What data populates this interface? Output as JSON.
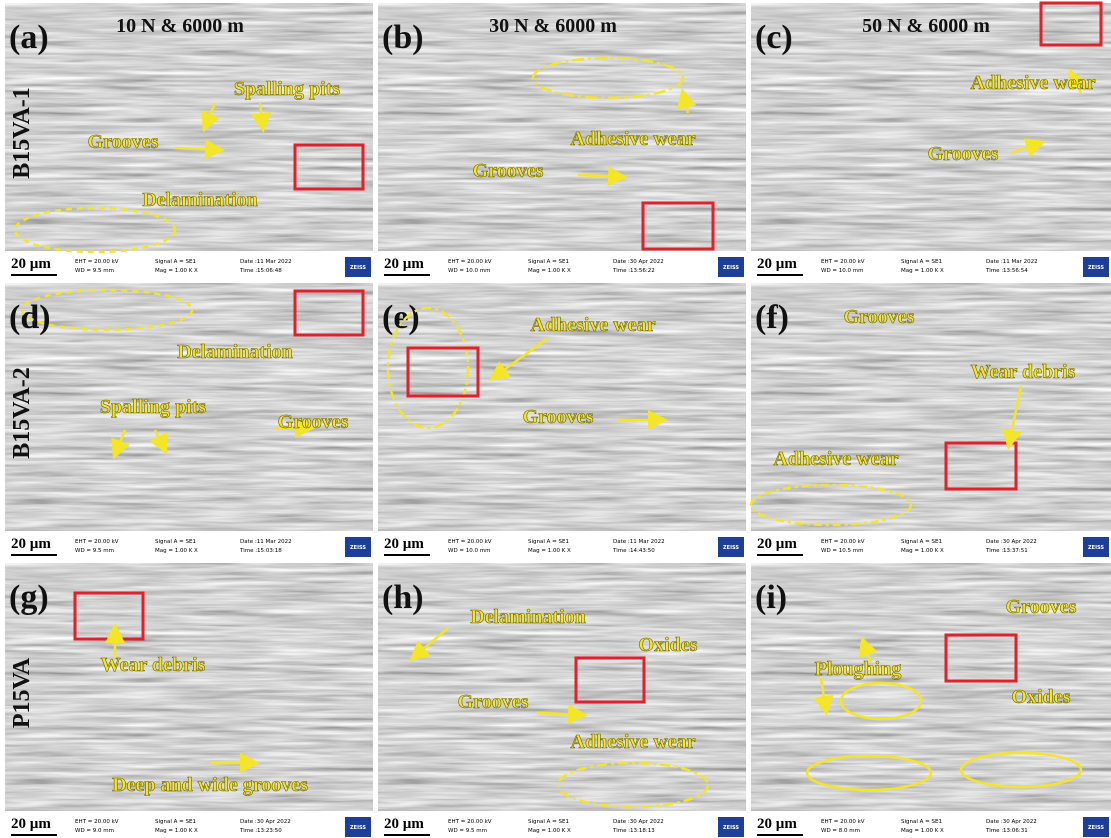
{
  "panels": [
    {
      "label": "(a)",
      "condition": "10 N & 6000 m",
      "row_label": "B15VA-1",
      "annotations": [
        "Spalling pits",
        "Grooves",
        "Delamination"
      ],
      "scale": "20 µm",
      "footer": {
        "eht": "EHT = 20.00 kV",
        "wd": "WD = 9.5 mm",
        "signal": "Signal A = SE1",
        "mag": "Mag = 1.00 K X",
        "date": "Date :11 Mar 2022",
        "time": "Time :15:06:48",
        "brand": "ZEISS"
      }
    },
    {
      "label": "(b)",
      "condition": "30 N & 6000 m",
      "annotations": [
        "Adhesive wear",
        "Grooves"
      ],
      "scale": "20 µm",
      "footer": {
        "eht": "EHT = 20.00 kV",
        "wd": "WD = 10.0 mm",
        "signal": "Signal A = SE1",
        "mag": "Mag = 1.00 K X",
        "date": "Date :30 Apr 2022",
        "time": "Time :13:56:22",
        "brand": "ZEISS"
      }
    },
    {
      "label": "(c)",
      "condition": "50 N & 6000 m",
      "annotations": [
        "Adhesive wear",
        "Grooves"
      ],
      "scale": "20 µm",
      "footer": {
        "eht": "EHT = 20.00 kV",
        "wd": "WD = 10.0 mm",
        "signal": "Signal A = SE1",
        "mag": "Mag = 1.00 K X",
        "date": "Date :11 Mar 2022",
        "time": "Time :13:56:54",
        "brand": "ZEISS"
      }
    },
    {
      "label": "(d)",
      "row_label": "B15VA-2",
      "annotations": [
        "Delamination",
        "Spalling pits",
        "Grooves"
      ],
      "scale": "20 µm",
      "footer": {
        "eht": "EHT = 20.00 kV",
        "wd": "WD = 9.5 mm",
        "signal": "Signal A = SE1",
        "mag": "Mag = 1.00 K X",
        "date": "Date :11 Mar 2022",
        "time": "Time :15:03:18",
        "brand": "ZEISS"
      }
    },
    {
      "label": "(e)",
      "annotations": [
        "Adhesive wear",
        "Grooves"
      ],
      "scale": "20 µm",
      "footer": {
        "eht": "EHT = 20.00 kV",
        "wd": "WD = 10.0 mm",
        "signal": "Signal A = SE1",
        "mag": "Mag = 1.00 K X",
        "date": "Date :11 Mar 2022",
        "time": "Time :14:43:50",
        "brand": "ZEISS"
      }
    },
    {
      "label": "(f)",
      "annotations": [
        "Grooves",
        "Wear debris",
        "Adhesive wear"
      ],
      "scale": "20 µm",
      "footer": {
        "eht": "EHT = 20.00 kV",
        "wd": "WD = 10.5 mm",
        "signal": "Signal A = SE1",
        "mag": "Mag = 1.00 K X",
        "date": "Date :30 Apr 2022",
        "time": "Time :13:37:51",
        "brand": "ZEISS"
      }
    },
    {
      "label": "(g)",
      "row_label": "P15VA",
      "annotations": [
        "Wear debris",
        "Deep and wide grooves"
      ],
      "scale": "20 µm",
      "footer": {
        "eht": "EHT = 20.00 kV",
        "wd": "WD = 9.0 mm",
        "signal": "Signal A = SE1",
        "mag": "Mag = 1.00 K X",
        "date": "Date :30 Apr 2022",
        "time": "Time :13:23:50",
        "brand": "ZEISS"
      }
    },
    {
      "label": "(h)",
      "annotations": [
        "Delamination",
        "Oxides",
        "Grooves",
        "Adhesive wear"
      ],
      "scale": "20 µm",
      "footer": {
        "eht": "EHT = 20.00 kV",
        "wd": "WD = 9.5 mm",
        "signal": "Signal A = SE1",
        "mag": "Mag = 1.00 K X",
        "date": "Date :30 Apr 2022",
        "time": "Time :13:18:13",
        "brand": "ZEISS"
      }
    },
    {
      "label": "(i)",
      "annotations": [
        "Grooves",
        "Ploughing",
        "Oxides"
      ],
      "scale": "20 µm",
      "footer": {
        "eht": "EHT = 20.00 kV",
        "wd": "WD = 8.0 mm",
        "signal": "Signal A = SE1",
        "mag": "Mag = 1.00 K X",
        "date": "Date :30 Apr 2022",
        "time": "Time :13:06:31",
        "brand": "ZEISS"
      }
    }
  ]
}
